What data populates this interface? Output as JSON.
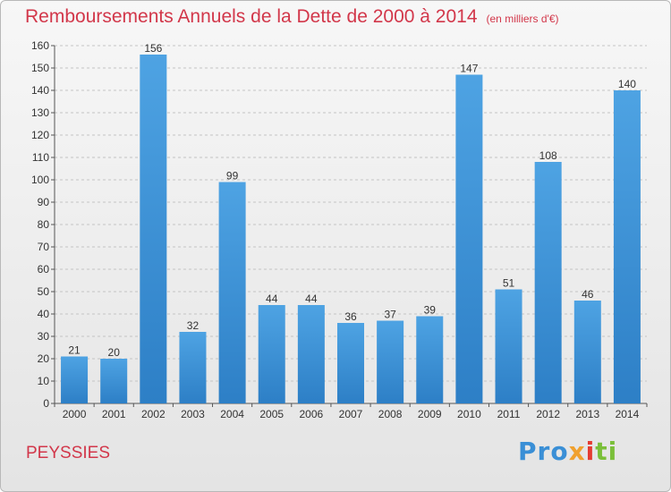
{
  "header": {
    "title": "Remboursements Annuels de la Dette de 2000 à 2014",
    "unit": "(en milliers d'€)"
  },
  "commune": "PEYSSIES",
  "logo": {
    "part1": "Pro",
    "part2": "x",
    "part3": "i",
    "part4": "ti"
  },
  "chart_data": {
    "type": "bar",
    "title": "Remboursements Annuels de la Dette de 2000 à 2014",
    "xlabel": "",
    "ylabel": "",
    "categories": [
      "2000",
      "2001",
      "2002",
      "2003",
      "2004",
      "2005",
      "2006",
      "2007",
      "2008",
      "2009",
      "2010",
      "2011",
      "2012",
      "2013",
      "2014"
    ],
    "values": [
      21,
      20,
      156,
      32,
      99,
      44,
      44,
      36,
      37,
      39,
      147,
      51,
      108,
      46,
      140
    ],
    "ylim": [
      0,
      160
    ],
    "yticks": [
      0,
      10,
      20,
      30,
      40,
      50,
      60,
      70,
      80,
      90,
      100,
      110,
      120,
      130,
      140,
      150,
      160
    ],
    "grid": true,
    "colors": {
      "bar": "#4ea3e3",
      "bar_dark": "#2d7fc6",
      "title": "#d2374a"
    }
  }
}
